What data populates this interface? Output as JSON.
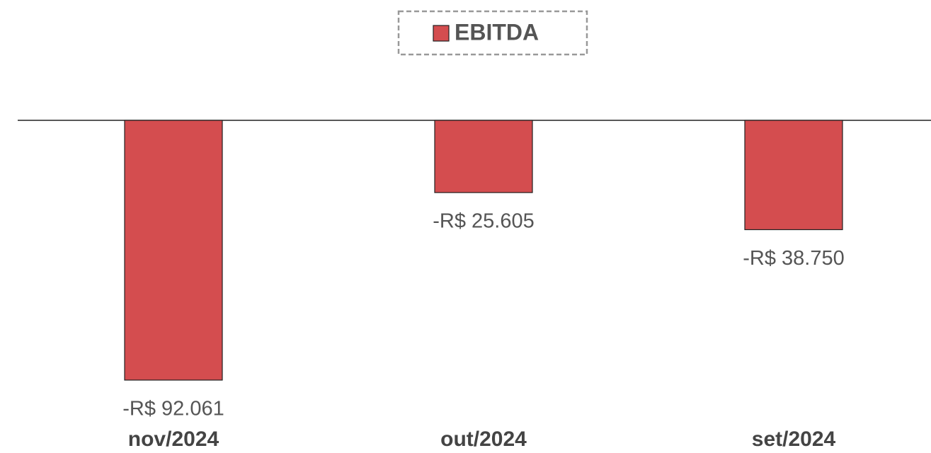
{
  "chart_data": {
    "type": "bar",
    "categories": [
      "nov/2024",
      "out/2024",
      "set/2024"
    ],
    "series": [
      {
        "name": "EBITDA",
        "color": "#d44d4f",
        "values": [
          -92061,
          -25605,
          -38750
        ],
        "value_labels": [
          "-R$ 92.061",
          "-R$ 25.605",
          "-R$ 38.750"
        ]
      }
    ]
  }
}
